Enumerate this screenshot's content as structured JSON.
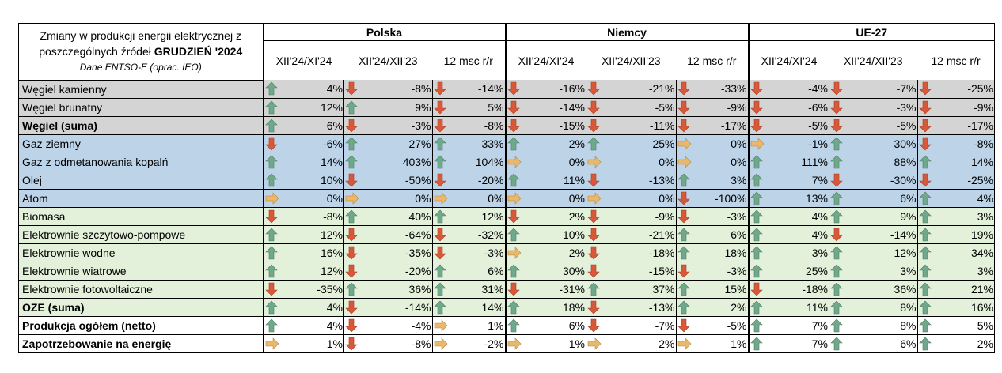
{
  "header": {
    "title_line1": "Zmiany w produkcji energii elektrycznej  z",
    "title_line2_plain": "poszczególnych źródeł ",
    "title_line2_bold": "GRUDZIEŃ '2024",
    "source": "Dane ENTSO-E (oprac. IEO)"
  },
  "groups": [
    "Polska",
    "Niemcy",
    "UE-27"
  ],
  "subcolumns": [
    "XII'24/XI'24",
    "XII'24/XII'23",
    "12 msc r/r"
  ],
  "colors": {
    "up": "#6fa88a",
    "down": "#d8583a",
    "flat": "#eab86a",
    "coal_bg": "#d4d4d4",
    "gas_bg": "#bcd3e8",
    "oze_bg": "#e3f0da"
  },
  "rows": [
    {
      "label": "Węgiel kamienny",
      "bold": false,
      "bg": "coal",
      "cells": [
        [
          "up",
          "4%"
        ],
        [
          "down",
          "-8%"
        ],
        [
          "down",
          "-14%"
        ],
        [
          "down",
          "-16%"
        ],
        [
          "down",
          "-21%"
        ],
        [
          "down",
          "-33%"
        ],
        [
          "down",
          "-4%"
        ],
        [
          "down",
          "-7%"
        ],
        [
          "down",
          "-25%"
        ]
      ]
    },
    {
      "label": "Węgiel brunatny",
      "bold": false,
      "bg": "coal",
      "cells": [
        [
          "up",
          "12%"
        ],
        [
          "up",
          "9%"
        ],
        [
          "down",
          "5%"
        ],
        [
          "down",
          "-14%"
        ],
        [
          "down",
          "-5%"
        ],
        [
          "down",
          "-9%"
        ],
        [
          "down",
          "-6%"
        ],
        [
          "down",
          "-3%"
        ],
        [
          "down",
          "-9%"
        ]
      ]
    },
    {
      "label": "Węgiel (suma)",
      "bold": true,
      "bg": "coal",
      "cells": [
        [
          "up",
          "6%"
        ],
        [
          "down",
          "-3%"
        ],
        [
          "down",
          "-8%"
        ],
        [
          "down",
          "-15%"
        ],
        [
          "down",
          "-11%"
        ],
        [
          "down",
          "-17%"
        ],
        [
          "down",
          "-5%"
        ],
        [
          "down",
          "-5%"
        ],
        [
          "down",
          "-17%"
        ]
      ]
    },
    {
      "label": "Gaz ziemny",
      "bold": false,
      "bg": "blue",
      "cells": [
        [
          "down",
          "-6%"
        ],
        [
          "up",
          "27%"
        ],
        [
          "up",
          "33%"
        ],
        [
          "up",
          "2%"
        ],
        [
          "up",
          "25%"
        ],
        [
          "flat",
          "0%"
        ],
        [
          "flat",
          "-1%"
        ],
        [
          "up",
          "30%"
        ],
        [
          "down",
          "-8%"
        ]
      ]
    },
    {
      "label": "Gaz z odmetanowania kopalń",
      "bold": false,
      "bg": "blue",
      "cells": [
        [
          "up",
          "14%"
        ],
        [
          "up",
          "403%"
        ],
        [
          "up",
          "104%"
        ],
        [
          "flat",
          "0%"
        ],
        [
          "flat",
          "0%"
        ],
        [
          "flat",
          "0%"
        ],
        [
          "up",
          "111%"
        ],
        [
          "up",
          "88%"
        ],
        [
          "up",
          "14%"
        ]
      ]
    },
    {
      "label": "Olej",
      "bold": false,
      "bg": "blue",
      "cells": [
        [
          "up",
          "10%"
        ],
        [
          "down",
          "-50%"
        ],
        [
          "down",
          "-20%"
        ],
        [
          "up",
          "11%"
        ],
        [
          "down",
          "-13%"
        ],
        [
          "up",
          "3%"
        ],
        [
          "up",
          "7%"
        ],
        [
          "down",
          "-30%"
        ],
        [
          "down",
          "-25%"
        ]
      ]
    },
    {
      "label": "Atom",
      "bold": false,
      "bg": "blue",
      "cells": [
        [
          "flat",
          "0%"
        ],
        [
          "flat",
          "0%"
        ],
        [
          "flat",
          "0%"
        ],
        [
          "flat",
          "0%"
        ],
        [
          "flat",
          "0%"
        ],
        [
          "down",
          "-100%"
        ],
        [
          "up",
          "13%"
        ],
        [
          "up",
          "6%"
        ],
        [
          "up",
          "4%"
        ]
      ]
    },
    {
      "label": "Biomasa",
      "bold": false,
      "bg": "green",
      "cells": [
        [
          "down",
          "-8%"
        ],
        [
          "up",
          "40%"
        ],
        [
          "up",
          "12%"
        ],
        [
          "down",
          "2%"
        ],
        [
          "down",
          "-9%"
        ],
        [
          "down",
          "-3%"
        ],
        [
          "up",
          "4%"
        ],
        [
          "up",
          "9%"
        ],
        [
          "up",
          "3%"
        ]
      ]
    },
    {
      "label": "Elektrownie szczytowo-pompowe",
      "bold": false,
      "bg": "green",
      "cells": [
        [
          "up",
          "12%"
        ],
        [
          "down",
          "-64%"
        ],
        [
          "down",
          "-32%"
        ],
        [
          "up",
          "10%"
        ],
        [
          "down",
          "-21%"
        ],
        [
          "up",
          "6%"
        ],
        [
          "up",
          "4%"
        ],
        [
          "down",
          "-14%"
        ],
        [
          "up",
          "19%"
        ]
      ]
    },
    {
      "label": "Elektrownie wodne",
      "bold": false,
      "bg": "green",
      "cells": [
        [
          "up",
          "16%"
        ],
        [
          "down",
          "-35%"
        ],
        [
          "down",
          "-3%"
        ],
        [
          "flat",
          "2%"
        ],
        [
          "down",
          "-18%"
        ],
        [
          "up",
          "18%"
        ],
        [
          "up",
          "3%"
        ],
        [
          "up",
          "12%"
        ],
        [
          "up",
          "34%"
        ]
      ]
    },
    {
      "label": "Elektrownie wiatrowe",
      "bold": false,
      "bg": "green",
      "cells": [
        [
          "up",
          "12%"
        ],
        [
          "down",
          "-20%"
        ],
        [
          "up",
          "6%"
        ],
        [
          "up",
          "30%"
        ],
        [
          "down",
          "-15%"
        ],
        [
          "down",
          "-3%"
        ],
        [
          "up",
          "25%"
        ],
        [
          "up",
          "3%"
        ],
        [
          "up",
          "3%"
        ]
      ]
    },
    {
      "label": "Elektrownie fotowoltaiczne",
      "bold": false,
      "bg": "green",
      "cells": [
        [
          "down",
          "-35%"
        ],
        [
          "up",
          "36%"
        ],
        [
          "up",
          "31%"
        ],
        [
          "down",
          "-31%"
        ],
        [
          "up",
          "37%"
        ],
        [
          "up",
          "15%"
        ],
        [
          "down",
          "-18%"
        ],
        [
          "up",
          "36%"
        ],
        [
          "up",
          "21%"
        ]
      ]
    },
    {
      "label": "OZE (suma)",
      "bold": true,
      "bg": "green",
      "cells": [
        [
          "up",
          "4%"
        ],
        [
          "down",
          "-14%"
        ],
        [
          "up",
          "14%"
        ],
        [
          "up",
          "18%"
        ],
        [
          "down",
          "-13%"
        ],
        [
          "up",
          "2%"
        ],
        [
          "up",
          "11%"
        ],
        [
          "up",
          "8%"
        ],
        [
          "up",
          "16%"
        ]
      ]
    },
    {
      "label": "Produkcja ogółem (netto)",
      "bold": true,
      "bg": "white",
      "cells": [
        [
          "up",
          "4%"
        ],
        [
          "down",
          "-4%"
        ],
        [
          "flat",
          "1%"
        ],
        [
          "up",
          "6%"
        ],
        [
          "down",
          "-7%"
        ],
        [
          "down",
          "-5%"
        ],
        [
          "up",
          "7%"
        ],
        [
          "up",
          "8%"
        ],
        [
          "up",
          "5%"
        ]
      ]
    },
    {
      "label": "Zapotrzebowanie na energię",
      "bold": true,
      "bg": "white",
      "cells": [
        [
          "flat",
          "1%"
        ],
        [
          "down",
          "-8%"
        ],
        [
          "flat",
          "-2%"
        ],
        [
          "flat",
          "1%"
        ],
        [
          "flat",
          "2%"
        ],
        [
          "flat",
          "1%"
        ],
        [
          "up",
          "7%"
        ],
        [
          "up",
          "6%"
        ],
        [
          "up",
          "2%"
        ]
      ]
    }
  ]
}
